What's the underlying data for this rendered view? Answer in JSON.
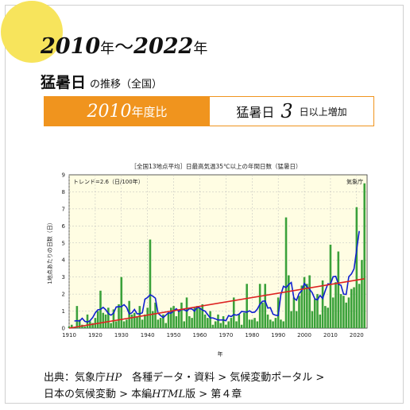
{
  "header": {
    "year_start": "2010",
    "year_end": "2022",
    "nen_a": "年",
    "wave": "〜",
    "nen_b": "年",
    "subtitle_main": "猛暑日",
    "subtitle_rest": "の推移（全国）"
  },
  "comparison": {
    "year": "2010",
    "label": "年度比",
    "metric": "猛暑日",
    "value": "3",
    "unit": "日以上増加"
  },
  "source": {
    "prefix": "出典：気象庁",
    "hp": "HP",
    "line1_rest": "　各種データ・資料 > 気候変動ポータル >",
    "line2_a": "日本の気候変動 > 本編",
    "html": "HTML",
    "line2_b": "版 > 第４章"
  },
  "colors": {
    "bar": "#3aa13a",
    "moving_average": "#1020d0",
    "trend": "#dd2222",
    "plot_bg": "#fffde3",
    "accent": "#f0941e"
  },
  "chart_data": {
    "type": "bar",
    "title": "［全国13地点平均］日最高気温35℃以上の年間日数（猛暑日）",
    "xlabel": "年",
    "ylabel": "1地点あたりの日数（日）",
    "trend_label": "トレンド=2.6（日/100年）",
    "agency_label": "気象庁",
    "xlim": [
      1910,
      2024
    ],
    "ylim": [
      0,
      9
    ],
    "x_ticks": [
      1910,
      1920,
      1930,
      1940,
      1950,
      1960,
      1970,
      1980,
      1990,
      2000,
      2010,
      2020
    ],
    "y_ticks": [
      0,
      1,
      2,
      3,
      4,
      5,
      6,
      7,
      8,
      9
    ],
    "grid": true,
    "series": [
      {
        "x": [
          1910,
          1911,
          1912,
          1913,
          1914,
          1915,
          1916,
          1917,
          1918,
          1919,
          1920,
          1921,
          1922,
          1923,
          1924,
          1925,
          1926,
          1927,
          1928,
          1929,
          1930,
          1931,
          1932,
          1933,
          1934,
          1935,
          1936,
          1937,
          1938,
          1939,
          1940,
          1941,
          1942,
          1943,
          1944,
          1945,
          1946,
          1947,
          1948,
          1949,
          1950,
          1951,
          1952,
          1953,
          1954,
          1955,
          1956,
          1957,
          1958,
          1959,
          1960,
          1961,
          1962,
          1963,
          1964,
          1965,
          1966,
          1967,
          1968,
          1969,
          1970,
          1971,
          1972,
          1973,
          1974,
          1975,
          1976,
          1977,
          1978,
          1979,
          1980,
          1981,
          1982,
          1983,
          1984,
          1985,
          1986,
          1987,
          1988,
          1989,
          1990,
          1991,
          1992,
          1993,
          1994,
          1995,
          1996,
          1997,
          1998,
          1999,
          2000,
          2001,
          2002,
          2003,
          2004,
          2005,
          2006,
          2007,
          2008,
          2009,
          2010,
          2011,
          2012,
          2013,
          2014,
          2015,
          2016,
          2017,
          2018,
          2019,
          2020,
          2021,
          2022,
          2023
        ],
        "values": [
          0.1,
          0.2,
          0.0,
          1.3,
          0.5,
          0.2,
          0.1,
          0.8,
          0.4,
          0.3,
          0.6,
          1.0,
          2.2,
          0.9,
          0.8,
          1.2,
          0.3,
          1.1,
          0.4,
          1.4,
          3.0,
          0.4,
          0.5,
          1.6,
          0.8,
          0.9,
          0.7,
          1.3,
          0.5,
          0.8,
          1.2,
          5.2,
          1.0,
          1.5,
          0.5,
          0.6,
          0.8,
          0.3,
          0.9,
          1.2,
          1.3,
          0.7,
          1.0,
          1.5,
          0.4,
          1.8,
          0.7,
          0.6,
          1.2,
          1.3,
          1.2,
          1.4,
          0.8,
          0.6,
          1.0,
          0.2,
          0.4,
          0.8,
          0.3,
          0.7,
          0.2,
          0.4,
          0.6,
          1.8,
          0.4,
          0.8,
          0.2,
          0.9,
          2.6,
          0.5,
          0.5,
          0.6,
          0.4,
          2.6,
          1.5,
          2.6,
          0.8,
          0.5,
          0.4,
          0.6,
          1.8,
          0.5,
          0.4,
          6.5,
          3.1,
          1.0,
          1.8,
          1.0,
          1.9,
          2.5,
          3.0,
          2.6,
          3.1,
          1.0,
          1.7,
          2.0,
          0.8,
          2.8,
          1.3,
          1.2,
          4.9,
          1.8,
          2.7,
          4.5,
          2.0,
          1.9,
          1.5,
          1.8,
          2.3,
          2.4,
          7.1,
          2.6,
          4.0,
          8.5
        ]
      },
      {
        "name": "5-year moving average",
        "x": [
          1912,
          1913,
          1914,
          1915,
          1916,
          1917,
          1918,
          1919,
          1920,
          1921,
          1922,
          1923,
          1924,
          1925,
          1926,
          1927,
          1928,
          1929,
          1930,
          1931,
          1932,
          1933,
          1934,
          1935,
          1936,
          1937,
          1938,
          1939,
          1940,
          1941,
          1942,
          1943,
          1944,
          1945,
          1946,
          1947,
          1948,
          1949,
          1950,
          1951,
          1952,
          1953,
          1954,
          1955,
          1956,
          1957,
          1958,
          1959,
          1960,
          1961,
          1962,
          1963,
          1964,
          1965,
          1966,
          1967,
          1968,
          1969,
          1970,
          1971,
          1972,
          1973,
          1974,
          1975,
          1976,
          1977,
          1978,
          1979,
          1980,
          1981,
          1982,
          1983,
          1984,
          1985,
          1986,
          1987,
          1988,
          1989,
          1990,
          1991,
          1992,
          1993,
          1994,
          1995,
          1996,
          1997,
          1998,
          1999,
          2000,
          2001,
          2002,
          2003,
          2004,
          2005,
          2006,
          2007,
          2008,
          2009,
          2010,
          2011,
          2012,
          2013,
          2014,
          2015,
          2016,
          2017,
          2018,
          2019,
          2020,
          2021
        ],
        "values": [
          0.42,
          0.44,
          0.42,
          0.58,
          0.4,
          0.36,
          0.44,
          0.62,
          0.9,
          1.08,
          1.1,
          1.22,
          1.08,
          0.86,
          0.76,
          0.88,
          1.24,
          1.26,
          1.26,
          1.38,
          1.22,
          0.84,
          0.9,
          1.1,
          0.84,
          0.84,
          0.9,
          1.7,
          1.8,
          1.96,
          1.88,
          1.76,
          0.88,
          0.74,
          0.62,
          0.76,
          0.9,
          0.88,
          1.02,
          1.14,
          0.98,
          1.1,
          1.08,
          1.0,
          1.14,
          1.12,
          1.0,
          1.24,
          1.18,
          1.06,
          1.0,
          0.8,
          0.6,
          0.6,
          0.54,
          0.48,
          0.48,
          0.48,
          0.44,
          0.74,
          0.68,
          0.8,
          0.76,
          0.82,
          0.98,
          0.96,
          0.94,
          1.02,
          0.92,
          0.94,
          1.12,
          1.4,
          1.58,
          1.6,
          1.18,
          1.2,
          0.82,
          0.76,
          0.74,
          1.96,
          2.46,
          2.38,
          2.56,
          2.68,
          1.76,
          1.64,
          2.04,
          2.2,
          2.62,
          2.44,
          2.28,
          2.08,
          1.72,
          1.66,
          1.92,
          1.74,
          2.2,
          2.6,
          2.58,
          3.02,
          3.04,
          2.58,
          2.52,
          2.0,
          1.98,
          3.02,
          3.18,
          3.48,
          4.6,
          5.7
        ]
      },
      {
        "name": "trend",
        "x": [
          1910,
          2023
        ],
        "values": [
          0.0,
          2.9
        ]
      }
    ]
  }
}
